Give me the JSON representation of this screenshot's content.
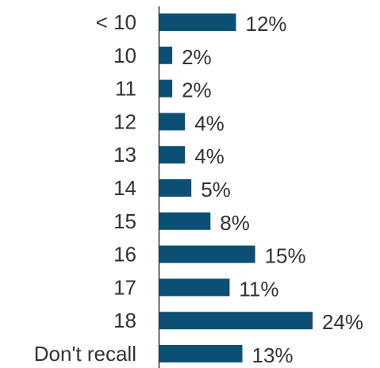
{
  "chart_data": {
    "type": "bar",
    "orientation": "horizontal",
    "categories": [
      "< 10",
      "10",
      "11",
      "12",
      "13",
      "14",
      "15",
      "16",
      "17",
      "18",
      "Don't recall"
    ],
    "values": [
      12,
      2,
      2,
      4,
      4,
      5,
      8,
      15,
      11,
      24,
      13
    ],
    "value_labels": [
      "12%",
      "2%",
      "2%",
      "4%",
      "4%",
      "5%",
      "8%",
      "15%",
      "11%",
      "24%",
      "13%"
    ],
    "unit": "%",
    "title": "",
    "xlabel": "",
    "ylabel": "",
    "xlim": [
      0,
      24
    ],
    "grid": false,
    "legend": "none",
    "colors": {
      "bar": "#0b4f74",
      "axis": "#333333",
      "text": "#333333"
    }
  }
}
